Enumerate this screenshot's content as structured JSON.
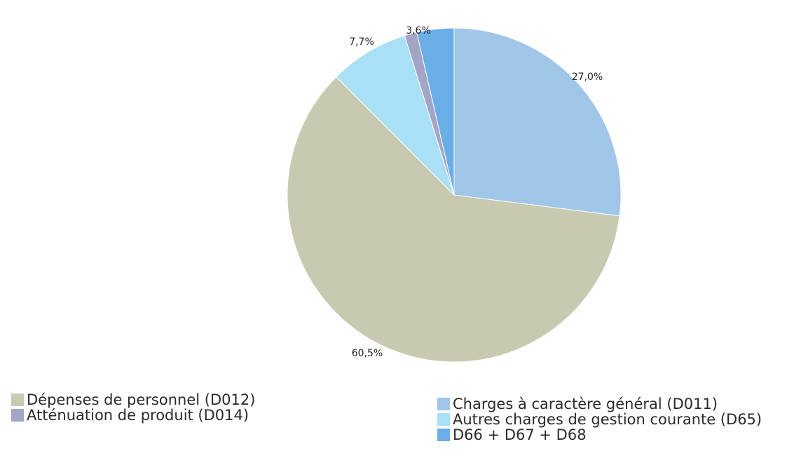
{
  "chart_data": {
    "type": "pie",
    "title": "",
    "slices": [
      {
        "label": "Charges à caractère général (D011)",
        "value": 27.0,
        "value_label": "27,0%",
        "color": "#9fc5e8"
      },
      {
        "label": "Dépenses de personnel (D012)",
        "value": 60.5,
        "value_label": "60,5%",
        "color": "#c8c9b0"
      },
      {
        "label": "Autres charges de gestion courante (D65)",
        "value": 7.7,
        "value_label": "7,7%",
        "color": "#a9e0f5"
      },
      {
        "label": "Atténuation de produit (D014)",
        "value": 1.2,
        "value_label": "",
        "color": "#a4a4c6"
      },
      {
        "label": "D66 + D67 + D68",
        "value": 3.6,
        "value_label": "3,6%",
        "color": "#6aaee8"
      }
    ],
    "start_angle_deg": 0,
    "direction": "clockwise",
    "legend": {
      "left": [
        "Dépenses de personnel (D012)",
        "Atténuation de produit (D014)"
      ],
      "right": [
        "Charges à caractère général (D011)",
        "Autres charges de gestion courante (D65)",
        "D66 + D67 + D68"
      ]
    }
  }
}
